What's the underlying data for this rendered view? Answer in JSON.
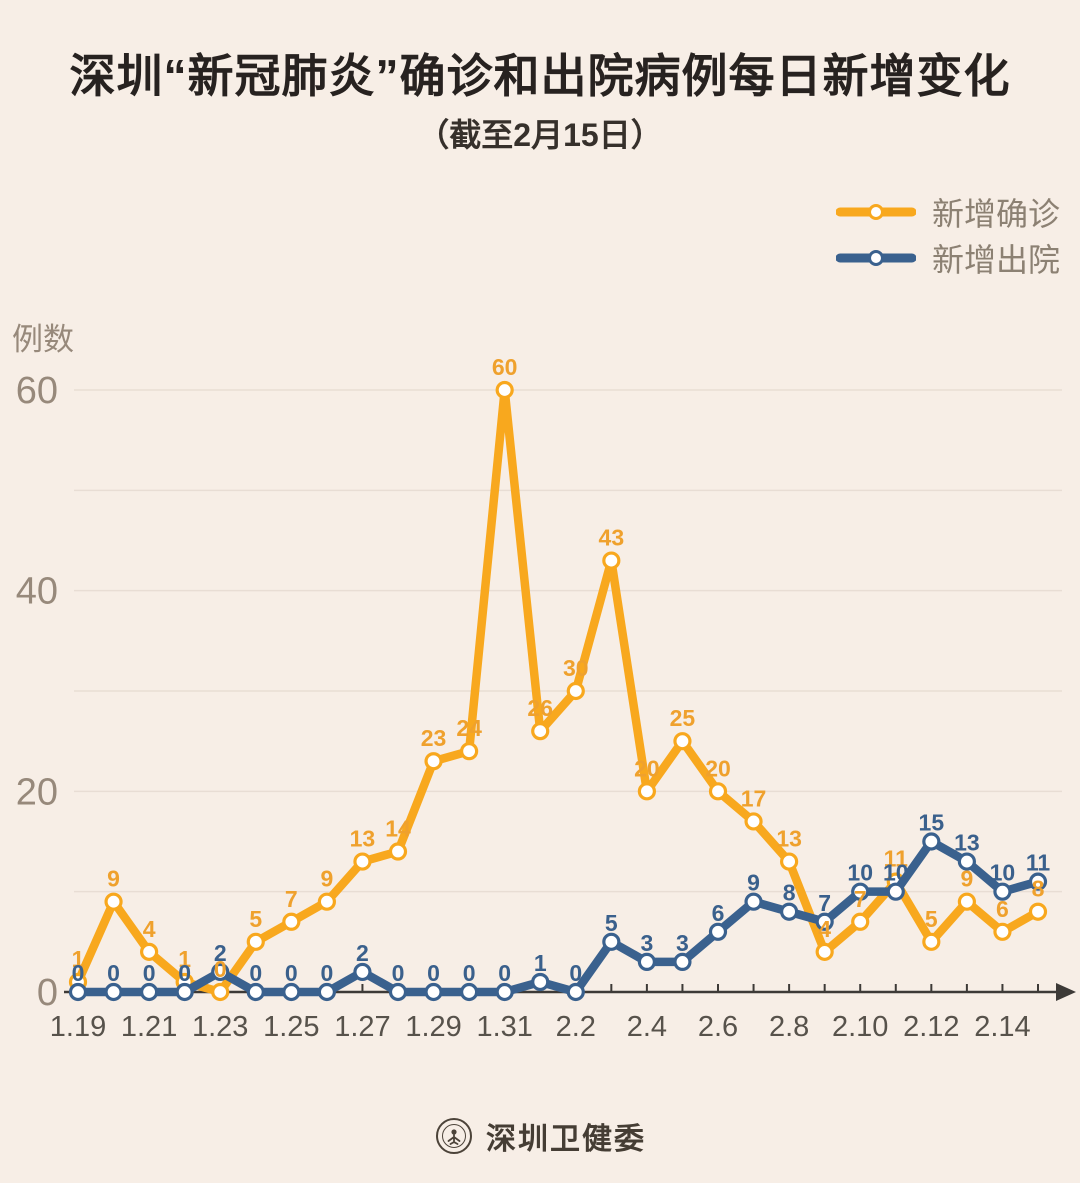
{
  "title": "深圳“新冠肺炎”确诊和出院病例每日新增变化",
  "subtitle": "（截至2月15日）",
  "legend": {
    "items": [
      {
        "label": "新增确诊",
        "color": "#F8A81E"
      },
      {
        "label": "新增出院",
        "color": "#3A618E"
      }
    ]
  },
  "footer": {
    "org": "深圳卫健委"
  },
  "colors": {
    "background": "#f7eee6",
    "grid": "#e8ddd4",
    "axis": "#3d3a37",
    "y_tick_label": "#97897b",
    "x_tick_label": "#57524b",
    "marker_fill": "#ffffff"
  },
  "chart_data": {
    "type": "line",
    "title": "深圳“新冠肺炎”确诊和出院病例每日新增变化",
    "subtitle": "（截至2月15日）",
    "ylabel": "例数",
    "ylim": [
      0,
      60
    ],
    "grid_step": 10,
    "y_ticks_labeled": [
      0,
      20,
      40,
      60
    ],
    "x": [
      "1.19",
      "1.20",
      "1.21",
      "1.22",
      "1.23",
      "1.24",
      "1.25",
      "1.26",
      "1.27",
      "1.28",
      "1.29",
      "1.30",
      "1.31",
      "2.1",
      "2.2",
      "2.3",
      "2.4",
      "2.5",
      "2.6",
      "2.7",
      "2.8",
      "2.9",
      "2.10",
      "2.11",
      "2.12",
      "2.13",
      "2.14",
      "2.15"
    ],
    "x_axis_labels": [
      "1.19",
      "1.21",
      "1.23",
      "1.25",
      "1.27",
      "1.29",
      "1.31",
      "2.2",
      "2.4",
      "2.6",
      "2.8",
      "2.10",
      "2.12",
      "2.14"
    ],
    "legend_position": "top-right",
    "grid": true,
    "series": [
      {
        "name": "新增确诊",
        "color": "#F8A81E",
        "label_color": "#EFA12D",
        "values": [
          1,
          9,
          4,
          1,
          0,
          5,
          7,
          9,
          13,
          14,
          23,
          24,
          60,
          26,
          30,
          43,
          20,
          25,
          20,
          17,
          13,
          4,
          7,
          11,
          5,
          9,
          6,
          8
        ]
      },
      {
        "name": "新增出院",
        "color": "#3A618E",
        "label_color": "#3A608C",
        "values": [
          0,
          0,
          0,
          0,
          2,
          0,
          0,
          0,
          2,
          0,
          0,
          0,
          0,
          1,
          0,
          5,
          3,
          3,
          6,
          9,
          8,
          7,
          10,
          10,
          15,
          13,
          10,
          11
        ]
      }
    ]
  }
}
